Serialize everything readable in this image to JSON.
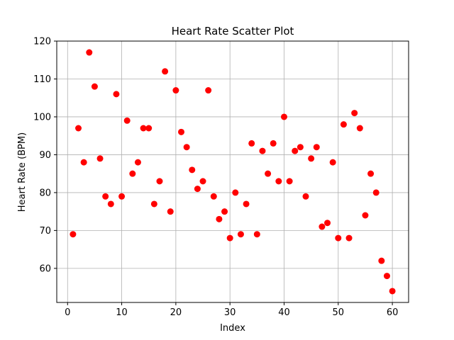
{
  "chart_data": {
    "type": "scatter",
    "title": "Heart Rate Scatter Plot",
    "xlabel": "Index",
    "ylabel": "Heart Rate (BPM)",
    "xlim": [
      -2,
      63
    ],
    "ylim": [
      51,
      120
    ],
    "xticks": [
      0,
      10,
      20,
      30,
      40,
      50,
      60
    ],
    "yticks": [
      60,
      70,
      80,
      90,
      100,
      110,
      120
    ],
    "grid": true,
    "marker_color": "#ff0000",
    "series": [
      {
        "x": [
          1,
          2,
          3,
          4,
          5,
          6,
          7,
          8,
          9,
          10,
          11,
          12,
          13,
          14,
          15,
          16,
          17,
          18,
          19,
          20,
          21,
          22,
          23,
          24,
          25,
          26,
          27,
          28,
          29,
          30,
          31,
          32,
          33,
          34,
          35,
          36,
          37,
          38,
          39,
          40,
          41,
          42,
          43,
          44,
          45,
          46,
          47,
          48,
          49,
          50,
          51,
          52,
          53,
          54,
          55,
          56,
          57,
          58,
          59,
          60
        ],
        "y": [
          69,
          97,
          88,
          117,
          108,
          89,
          79,
          77,
          106,
          79,
          99,
          85,
          88,
          97,
          97,
          77,
          83,
          112,
          75,
          107,
          96,
          92,
          86,
          81,
          83,
          107,
          79,
          73,
          75,
          68,
          80,
          69,
          77,
          93,
          69,
          91,
          85,
          93,
          83,
          100,
          83,
          91,
          92,
          79,
          89,
          92,
          71,
          72,
          88,
          68,
          98,
          68,
          101,
          97,
          74,
          85,
          80,
          62,
          58,
          54
        ]
      }
    ]
  }
}
